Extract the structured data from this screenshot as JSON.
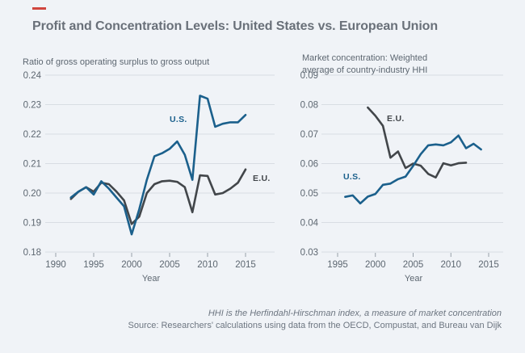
{
  "accent": {
    "color": "#d0453e"
  },
  "title": "Profit and Concentration Levels: United States vs. European Union",
  "colors": {
    "us": "#1b608c",
    "eu": "#42464a",
    "grid": "#d8dde3",
    "tick": "#97a0a9",
    "axis_text": "#5d6771"
  },
  "footer": {
    "note": "HHI is the Herfindahl-Hirschman index, a measure of market concentration",
    "source": "Source: Researchers' calculations using data from the OECD, Compustat, and Bureau van Dijk"
  },
  "chart_data": [
    {
      "type": "line",
      "title": "Ratio of gross operating surplus to gross output",
      "xlabel": "Year",
      "ylim": [
        0.18,
        0.24
      ],
      "xlim": [
        1990,
        2015
      ],
      "yticks": [
        "0.24",
        "0.23",
        "0.22",
        "0.21",
        "0.20",
        "0.19",
        "0.18"
      ],
      "xticks": [
        1990,
        1995,
        2000,
        2005,
        2010,
        2015
      ],
      "grid": true,
      "legend_position": "inline-labels",
      "series": [
        {
          "name": "E.U.",
          "color_key": "eu",
          "points": [
            [
              1992,
              0.198
            ],
            [
              1993,
              0.2005
            ],
            [
              1994,
              0.202
            ],
            [
              1995,
              0.2005
            ],
            [
              1996,
              0.2035
            ],
            [
              1997,
              0.203
            ],
            [
              1998,
              0.2005
            ],
            [
              1999,
              0.1975
            ],
            [
              2000,
              0.1895
            ],
            [
              2001,
              0.192
            ],
            [
              2002,
              0.2
            ],
            [
              2003,
              0.203
            ],
            [
              2004,
              0.204
            ],
            [
              2005,
              0.2042
            ],
            [
              2006,
              0.2038
            ],
            [
              2007,
              0.202
            ],
            [
              2008,
              0.1935
            ],
            [
              2009,
              0.206
            ],
            [
              2010,
              0.2058
            ],
            [
              2011,
              0.1995
            ],
            [
              2012,
              0.2
            ],
            [
              2013,
              0.2015
            ],
            [
              2014,
              0.2035
            ],
            [
              2015,
              0.208
            ]
          ]
        },
        {
          "name": "U.S.",
          "color_key": "us",
          "points": [
            [
              1992,
              0.1985
            ],
            [
              1993,
              0.2005
            ],
            [
              1994,
              0.202
            ],
            [
              1995,
              0.1995
            ],
            [
              1996,
              0.204
            ],
            [
              1997,
              0.2015
            ],
            [
              1998,
              0.1985
            ],
            [
              1999,
              0.1955
            ],
            [
              2000,
              0.186
            ],
            [
              2001,
              0.1945
            ],
            [
              2002,
              0.2045
            ],
            [
              2003,
              0.2125
            ],
            [
              2004,
              0.2135
            ],
            [
              2005,
              0.215
            ],
            [
              2006,
              0.2175
            ],
            [
              2007,
              0.213
            ],
            [
              2008,
              0.2045
            ],
            [
              2009,
              0.233
            ],
            [
              2010,
              0.232
            ],
            [
              2011,
              0.2225
            ],
            [
              2012,
              0.2235
            ],
            [
              2013,
              0.224
            ],
            [
              2014,
              0.224
            ],
            [
              2015,
              0.2265
            ]
          ]
        }
      ]
    },
    {
      "type": "line",
      "title": "Market concentration: Weighted\naverage of country-industry HHI",
      "xlabel": "Year",
      "ylim": [
        0.03,
        0.09
      ],
      "xlim": [
        1995,
        2015
      ],
      "yticks": [
        "0.09",
        "0.08",
        "0.07",
        "0.06",
        "0.05",
        "0.04",
        "0.03"
      ],
      "xticks": [
        1995,
        2000,
        2005,
        2010,
        2015
      ],
      "grid": true,
      "legend_position": "inline-labels",
      "series": [
        {
          "name": "E.U.",
          "color_key": "eu",
          "points": [
            [
              1999,
              0.079
            ],
            [
              2000,
              0.0762
            ],
            [
              2001,
              0.0728
            ],
            [
              2002,
              0.062
            ],
            [
              2003,
              0.0641
            ],
            [
              2004,
              0.0585
            ],
            [
              2005,
              0.06
            ],
            [
              2006,
              0.0593
            ],
            [
              2007,
              0.0565
            ],
            [
              2008,
              0.0553
            ],
            [
              2009,
              0.0601
            ],
            [
              2010,
              0.0594
            ],
            [
              2011,
              0.0601
            ],
            [
              2012,
              0.0603
            ]
          ]
        },
        {
          "name": "U.S.",
          "color_key": "us",
          "points": [
            [
              1996,
              0.0487
            ],
            [
              1997,
              0.0492
            ],
            [
              1998,
              0.0465
            ],
            [
              1999,
              0.0488
            ],
            [
              2000,
              0.0497
            ],
            [
              2001,
              0.0528
            ],
            [
              2002,
              0.0532
            ],
            [
              2003,
              0.0547
            ],
            [
              2004,
              0.0556
            ],
            [
              2005,
              0.0592
            ],
            [
              2006,
              0.0632
            ],
            [
              2007,
              0.0662
            ],
            [
              2008,
              0.0665
            ],
            [
              2009,
              0.0662
            ],
            [
              2010,
              0.0672
            ],
            [
              2011,
              0.0695
            ],
            [
              2012,
              0.0652
            ],
            [
              2013,
              0.0667
            ],
            [
              2014,
              0.0648
            ]
          ]
        }
      ]
    }
  ]
}
